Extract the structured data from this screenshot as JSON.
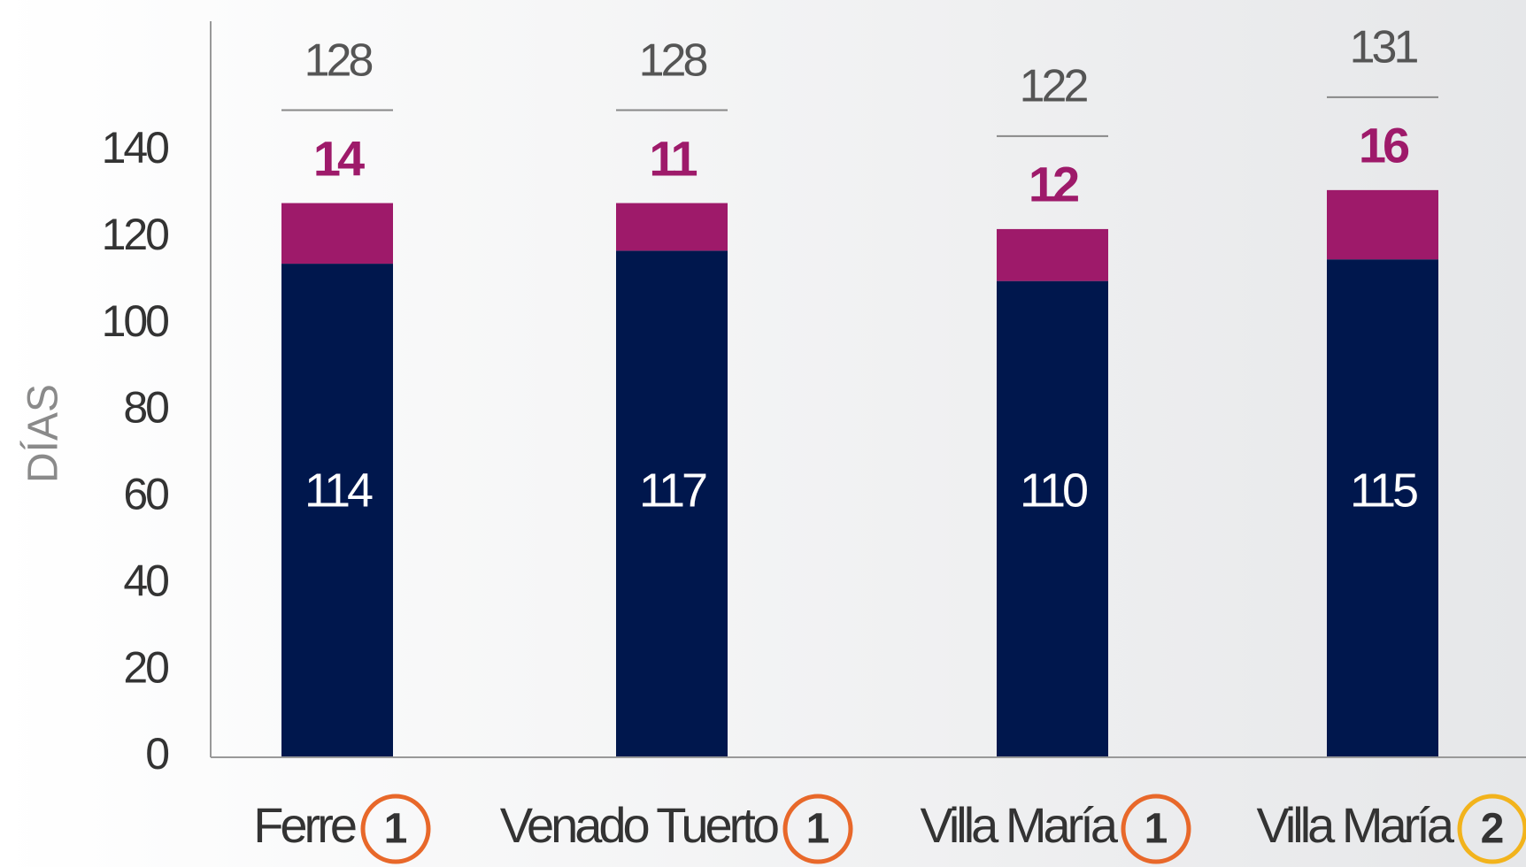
{
  "chart_data": {
    "type": "stacked_bar",
    "y_label": "DÍAS",
    "categories": [
      "Ferre",
      "Venado Tuerto",
      "Villa María",
      "Villa María"
    ],
    "category_badges": [
      1,
      1,
      1,
      2
    ],
    "badge_colors": [
      "#e8682a",
      "#e8682a",
      "#e8682a",
      "#f2b31c"
    ],
    "series": [
      {
        "color": "#00174d",
        "values": [
          114,
          117,
          110,
          115
        ]
      },
      {
        "color": "#9e1a6a",
        "values": [
          14,
          11,
          12,
          16
        ]
      }
    ],
    "totals": [
      128,
      128,
      122,
      131
    ],
    "ylim": [
      0,
      170
    ],
    "yticks": [
      0,
      20,
      40,
      60,
      80,
      100,
      120,
      140
    ]
  }
}
